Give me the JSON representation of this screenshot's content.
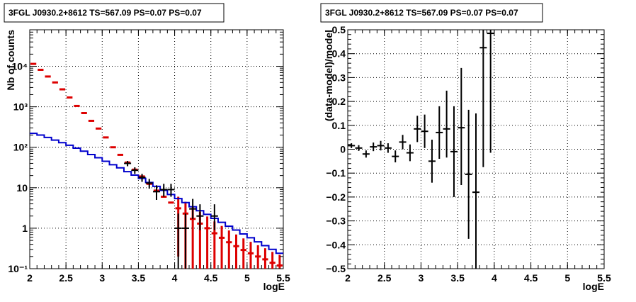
{
  "panels": [
    {
      "title": "3FGL J0930.2+8612 TS=567.09 PS=0.07 PS=0.07",
      "xlabel": "logE",
      "ylabel": "Nb of counts",
      "xticks": [
        "2",
        "2.5",
        "3",
        "3.5",
        "4",
        "4.5",
        "5",
        "5.5"
      ],
      "yticks": [
        "10⁻¹",
        "1",
        "10",
        "10²",
        "10³",
        "10⁴"
      ]
    },
    {
      "title": "3FGL J0930.2+8612 TS=567.09 PS=0.07 PS=0.07",
      "xlabel": "logE",
      "ylabel": "(data-model)/model",
      "xticks": [
        "2",
        "2.5",
        "3",
        "3.5",
        "4",
        "4.5",
        "5",
        "5.5"
      ],
      "yticks": [
        "−0.5",
        "−0.4",
        "−0.3",
        "−0.2",
        "−0.1",
        "0",
        "0.1",
        "0.2",
        "0.3",
        "0.4",
        "0.5"
      ]
    }
  ],
  "chart_data": [
    {
      "type": "scatter",
      "title": "3FGL J0930.2+8612 TS=567.09 PS=0.07 PS=0.07",
      "xlabel": "logE",
      "ylabel": "Nb of counts",
      "xlim": [
        2,
        5.5
      ],
      "ylim": [
        0.1,
        80000
      ],
      "yscale": "log",
      "grid": true,
      "colors": {
        "model_total": "#dd0000",
        "model_source": "#0000cc",
        "data": "#000000"
      },
      "bin_edges": [
        2.0,
        2.1,
        2.2,
        2.3,
        2.4,
        2.5,
        2.6,
        2.7,
        2.8,
        2.9,
        3.0,
        3.1,
        3.2,
        3.3,
        3.4,
        3.5,
        3.6,
        3.7,
        3.8,
        3.9,
        4.0,
        4.1,
        4.2,
        4.3,
        4.4,
        4.5,
        4.6,
        4.7,
        4.8,
        4.9,
        5.0,
        5.1,
        5.2,
        5.3,
        5.4,
        5.5
      ],
      "series": [
        {
          "values": [
            11500,
            8200,
            5600,
            4000,
            2700,
            1700,
            1050,
            700,
            450,
            290,
            175,
            100,
            65,
            42,
            28,
            19,
            12.5,
            8.5,
            6,
            4.3,
            3.1,
            2.3,
            1.7,
            1.3,
            1.0,
            0.75,
            0.58,
            0.45,
            0.36,
            0.29,
            0.24,
            0.2,
            0.17,
            0.14,
            0.12
          ],
          "errors": [
            0,
            0,
            0,
            0,
            0,
            0,
            0,
            0,
            0,
            0,
            0,
            0,
            0,
            0,
            0,
            0,
            0,
            0,
            0,
            0,
            2.9,
            2.2,
            1.6,
            1.25,
            0.95,
            0.72,
            0.56,
            0.43,
            0.34,
            0.27,
            0.22,
            0.18,
            0.15,
            0.12,
            0.1
          ]
        },
        {
          "values": [
            220,
            200,
            175,
            150,
            130,
            112,
            95,
            80,
            66,
            55,
            45,
            37,
            31,
            25,
            20.5,
            17,
            13.5,
            10.8,
            8.6,
            6.8,
            5.4,
            4.3,
            3.4,
            2.7,
            2.2,
            1.75,
            1.4,
            1.12,
            0.9,
            0.72,
            0.58,
            0.46,
            0.37,
            0.3,
            0.24
          ]
        },
        {
          "x": [
            3.35,
            3.45,
            3.55,
            3.65,
            3.75,
            3.85,
            3.95,
            4.05,
            4.15,
            4.25,
            4.35,
            4.55
          ],
          "y": [
            40,
            27,
            18,
            13,
            8,
            9,
            9,
            1,
            1,
            3,
            2,
            2
          ],
          "yerr_low": [
            6,
            5,
            4,
            3.5,
            3,
            3,
            3,
            0.9,
            0.9,
            1.3,
            1.1,
            1.1
          ],
          "yerr_high": [
            6,
            5,
            4,
            3.5,
            3.5,
            3.5,
            3.5,
            1.3,
            1.3,
            2.3,
            1.9,
            1.9
          ]
        }
      ]
    },
    {
      "type": "scatter",
      "title": "3FGL J0930.2+8612 TS=567.09 PS=0.07 PS=0.07",
      "xlabel": "logE",
      "ylabel": "(data-model)/model",
      "xlim": [
        2,
        5.5
      ],
      "ylim": [
        -0.5,
        0.5
      ],
      "grid": true,
      "x": [
        2.05,
        2.15,
        2.25,
        2.35,
        2.45,
        2.55,
        2.65,
        2.75,
        2.85,
        2.95,
        3.05,
        3.15,
        3.25,
        3.35,
        3.45,
        3.55,
        3.65,
        3.75,
        3.85,
        3.95
      ],
      "y": [
        0.015,
        0.005,
        -0.02,
        0.01,
        0.015,
        0.005,
        -0.03,
        0.03,
        -0.015,
        0.085,
        0.075,
        -0.05,
        0.07,
        0.085,
        -0.01,
        0.09,
        -0.105,
        -0.18,
        0.425,
        0.485
      ],
      "yerr_low": [
        0.01,
        0.012,
        0.015,
        0.018,
        0.02,
        0.02,
        0.025,
        0.03,
        0.035,
        0.055,
        0.07,
        0.09,
        0.11,
        0.12,
        0.19,
        0.24,
        0.27,
        0.33,
        0.5,
        0.5
      ],
      "yerr_high": [
        0.01,
        0.012,
        0.015,
        0.018,
        0.02,
        0.02,
        0.025,
        0.03,
        0.035,
        0.055,
        0.07,
        0.09,
        0.11,
        0.16,
        0.19,
        0.25,
        0.27,
        0.33,
        0.25,
        0.25
      ]
    }
  ]
}
